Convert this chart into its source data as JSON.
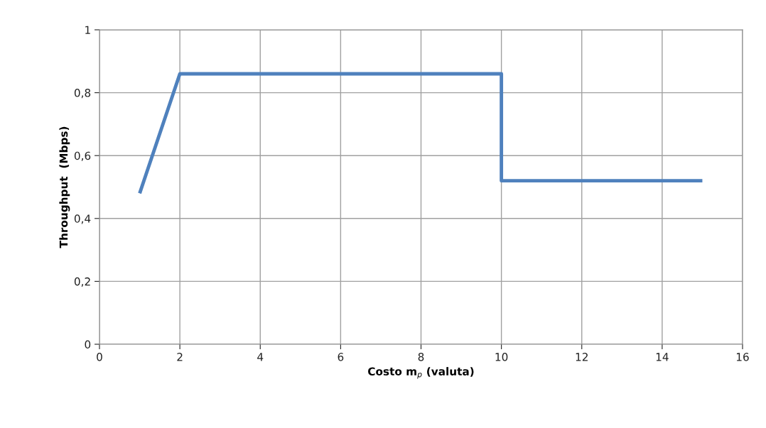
{
  "chart_data": {
    "type": "line",
    "xlabel": "Costo m$_{p}$ (valuta)",
    "ylabel": "Throughput  (Mbps)",
    "x": [
      1,
      2,
      10,
      10,
      15
    ],
    "series": [
      {
        "color": "#4f81bd",
        "values": [
          0.48,
          0.86,
          0.86,
          0.52,
          0.52
        ]
      }
    ],
    "xlim": [
      0,
      16
    ],
    "xticks": [
      0,
      2,
      4,
      6,
      8,
      10,
      12,
      14,
      16
    ],
    "ylim": [
      0,
      1
    ],
    "yticks": [
      0,
      {
        "value": 0.2,
        "label": "0,2"
      },
      {
        "value": 0.4,
        "label": "0,4"
      },
      {
        "value": 0.6,
        "label": "0,6"
      },
      {
        "value": 0.8,
        "label": "0,8"
      },
      1
    ],
    "grid": true,
    "marker": "none",
    "line_style": "solid"
  }
}
